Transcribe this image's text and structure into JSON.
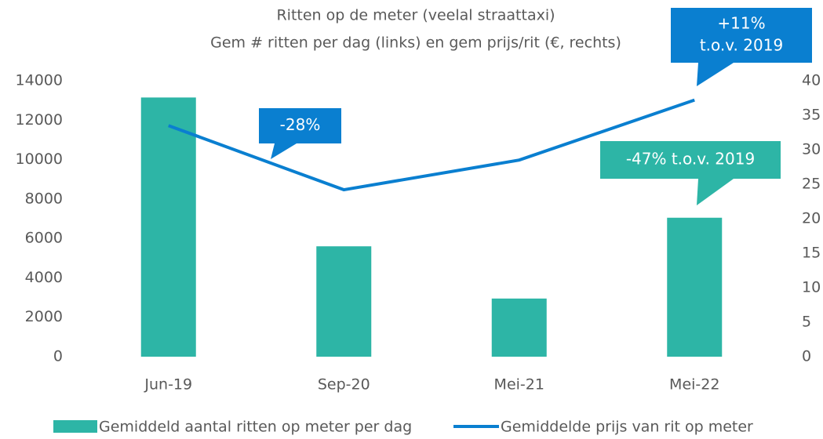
{
  "chart_data": {
    "type": "bar-line",
    "title": "Ritten op de meter (veelal straattaxi)",
    "subtitle": "Gem # ritten per dag (links) en gem prijs/rit (€, rechts)",
    "categories": [
      "Jun-19",
      "Sep-20",
      "Mei-21",
      "Mei-22"
    ],
    "series": [
      {
        "name": "Gemiddeld aantal ritten op meter per dag",
        "type": "bar",
        "color": "#2db5a6",
        "values": [
          13150,
          5600,
          2950,
          7050
        ]
      },
      {
        "name": "Gemiddelde prijs van rit op meter",
        "type": "line",
        "axis": "y2",
        "color": "#0a7fd0",
        "values": [
          33.5,
          24.2,
          28.5,
          37.2
        ]
      }
    ],
    "ylim": [
      0,
      14000
    ],
    "yticks": [
      0,
      2000,
      4000,
      6000,
      8000,
      10000,
      12000,
      14000
    ],
    "y2lim": [
      0,
      40
    ],
    "y2ticks": [
      0,
      5,
      10,
      15,
      20,
      25,
      30,
      35,
      40
    ],
    "annotations": [
      {
        "lines": [
          "-28%"
        ],
        "color": "#0a7fd0"
      },
      {
        "lines": [
          "+11%",
          "t.o.v. 2019"
        ],
        "color": "#0a7fd0"
      },
      {
        "lines": [
          "-47% t.o.v. 2019"
        ],
        "color": "#2db5a6"
      }
    ],
    "legend": "bottom"
  }
}
